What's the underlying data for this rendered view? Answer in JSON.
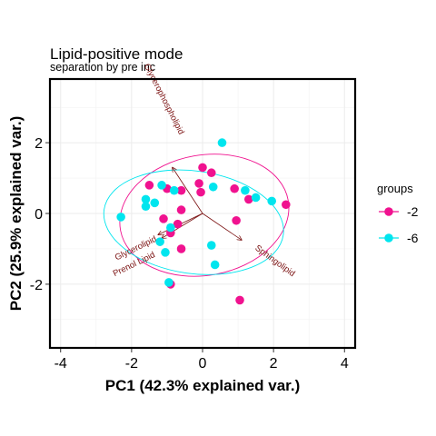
{
  "chart_data": {
    "type": "scatter",
    "title": "Lipid-positive mode",
    "subtitle": "separation by pre inc",
    "xlabel": "PC1 (42.3% explained var.)",
    "ylabel": "PC2 (25.9% explained var.)",
    "xlim": [
      -4.3,
      4.3
    ],
    "ylim": [
      -3.8,
      3.8
    ],
    "x_ticks": [
      -4,
      -2,
      0,
      2,
      4
    ],
    "y_ticks": [
      -2,
      0,
      2
    ],
    "grid": true,
    "legend": {
      "title": "groups",
      "position": "right"
    },
    "series": [
      {
        "name": "-2",
        "color": "#f0128f",
        "points": [
          {
            "x": -1.5,
            "y": 0.8
          },
          {
            "x": -1.0,
            "y": 0.7
          },
          {
            "x": -0.6,
            "y": 0.65
          },
          {
            "x": -0.6,
            "y": 0.1
          },
          {
            "x": -0.7,
            "y": -0.3
          },
          {
            "x": -1.1,
            "y": -0.15
          },
          {
            "x": -0.9,
            "y": -0.55
          },
          {
            "x": -0.6,
            "y": -1.0
          },
          {
            "x": 0.0,
            "y": 1.3
          },
          {
            "x": 0.25,
            "y": 1.15
          },
          {
            "x": -0.1,
            "y": 0.85
          },
          {
            "x": -0.05,
            "y": 0.6
          },
          {
            "x": 0.9,
            "y": 0.7
          },
          {
            "x": 0.95,
            "y": -0.2
          },
          {
            "x": 1.3,
            "y": 0.4
          },
          {
            "x": 2.35,
            "y": 0.25
          },
          {
            "x": 1.05,
            "y": -2.45
          },
          {
            "x": -0.9,
            "y": -2.0
          }
        ]
      },
      {
        "name": "-6",
        "color": "#00e5ee",
        "points": [
          {
            "x": -2.3,
            "y": -0.1
          },
          {
            "x": -1.6,
            "y": 0.4
          },
          {
            "x": -1.6,
            "y": 0.2
          },
          {
            "x": -1.15,
            "y": 0.8
          },
          {
            "x": -1.35,
            "y": 0.3
          },
          {
            "x": -0.8,
            "y": 0.65
          },
          {
            "x": -0.9,
            "y": -0.4
          },
          {
            "x": -1.2,
            "y": -0.8
          },
          {
            "x": -1.05,
            "y": -1.1
          },
          {
            "x": 0.3,
            "y": 0.75
          },
          {
            "x": 0.55,
            "y": 2.0
          },
          {
            "x": 1.2,
            "y": 0.65
          },
          {
            "x": 1.5,
            "y": 0.45
          },
          {
            "x": 1.95,
            "y": 0.35
          },
          {
            "x": 0.25,
            "y": -0.9
          },
          {
            "x": 0.35,
            "y": -1.45
          },
          {
            "x": -0.95,
            "y": -1.95
          }
        ]
      }
    ],
    "ellipses": [
      {
        "group": "-2",
        "cx": 0.05,
        "cy": -0.05,
        "rx": 2.4,
        "ry": 1.7,
        "angle_deg": -10
      },
      {
        "group": "-6",
        "cx": -0.25,
        "cy": -0.25,
        "rx": 2.55,
        "ry": 1.45,
        "angle_deg": 8
      }
    ],
    "loadings": [
      {
        "label": "Glycerophospholipid",
        "x": -0.85,
        "y": 1.3
      },
      {
        "label": "Glycerolipid",
        "x": -1.25,
        "y": -0.6
      },
      {
        "label": "Prenol Lipid",
        "x": -1.15,
        "y": -0.7
      },
      {
        "label": "Sphingolipid",
        "x": 1.1,
        "y": -0.75
      }
    ]
  }
}
